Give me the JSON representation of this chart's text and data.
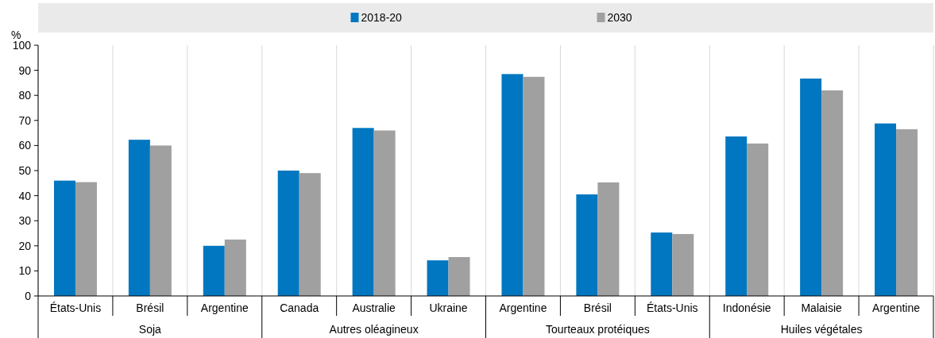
{
  "chart_data": {
    "type": "bar",
    "ylabel": "%",
    "categories": [
      "États-Unis",
      "Brésil",
      "Argentine",
      "Canada",
      "Australie",
      "Ukraine",
      "Argentine",
      "Brésil",
      "États-Unis",
      "Indonésie",
      "Malaisie",
      "Argentine"
    ],
    "series": [
      {
        "name": "2018-20",
        "color": "#0077c0",
        "values": [
          46,
          62.3,
          20,
          50,
          67,
          14.2,
          88.5,
          40.5,
          25.3,
          63.6,
          86.7,
          68.8
        ]
      },
      {
        "name": "2030",
        "color": "#a0a0a0",
        "values": [
          45.4,
          60,
          22.5,
          49,
          66,
          15.5,
          87.4,
          45.3,
          24.7,
          60.8,
          82,
          66.5
        ]
      }
    ],
    "annotations": [
      "Soja",
      "Autres oléagineux",
      "Tourteaux protéiques",
      "Huiles végétales"
    ],
    "ylim": [
      0,
      100
    ],
    "yticks": [
      0,
      10,
      20,
      30,
      40,
      50,
      60,
      70,
      80,
      90,
      100
    ],
    "legend": "top"
  }
}
